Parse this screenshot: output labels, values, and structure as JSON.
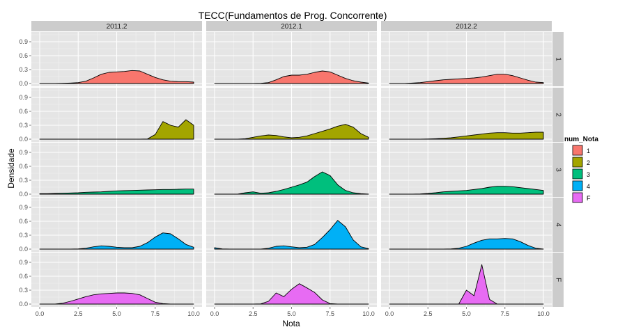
{
  "chart_data": {
    "type": "area",
    "subtype": "density-facet-grid",
    "title": "TECC(Fundamentos de Prog. Concorrente)",
    "xlabel": "Nota",
    "ylabel": "Densidade",
    "columns": [
      "2011.2",
      "2012.1",
      "2012.2"
    ],
    "rows": [
      "1",
      "2",
      "3",
      "4",
      "F"
    ],
    "xlim": [
      0,
      10
    ],
    "ylim": [
      0,
      1.05
    ],
    "x_ticks": [
      "0.0",
      "2.5",
      "5.0",
      "7.5",
      "10.0"
    ],
    "y_ticks": [
      "0.0",
      "0.3",
      "0.6",
      "0.9"
    ],
    "grid": true,
    "legend": {
      "title": "num_Nota",
      "position": "right",
      "entries": [
        "1",
        "2",
        "3",
        "4",
        "F"
      ]
    },
    "colors": {
      "1": "#F8766D",
      "2": "#A3A500",
      "3": "#00BF7D",
      "4": "#00B0F6",
      "F": "#E76BF3",
      "panel_bg": "#E5E5E5",
      "strip_bg": "#CCCCCC",
      "grid_major": "#FFFFFF",
      "grid_minor": "#F2F2F2"
    },
    "x": [
      0,
      0.5,
      1,
      1.5,
      2,
      2.5,
      3,
      3.5,
      4,
      4.5,
      5,
      5.5,
      6,
      6.5,
      7,
      7.5,
      8,
      8.5,
      9,
      9.5,
      10
    ],
    "panels": [
      {
        "row": "1",
        "col": "2011.2",
        "y": [
          0,
          0,
          0,
          0.005,
          0.01,
          0.02,
          0.05,
          0.12,
          0.2,
          0.24,
          0.25,
          0.26,
          0.28,
          0.27,
          0.2,
          0.13,
          0.08,
          0.05,
          0.04,
          0.04,
          0.03
        ]
      },
      {
        "row": "1",
        "col": "2012.1",
        "y": [
          0,
          0,
          0,
          0,
          0,
          0,
          0.005,
          0.02,
          0.08,
          0.15,
          0.18,
          0.18,
          0.2,
          0.24,
          0.27,
          0.25,
          0.18,
          0.11,
          0.06,
          0.03,
          0.01
        ]
      },
      {
        "row": "1",
        "col": "2012.2",
        "y": [
          0,
          0,
          0,
          0.01,
          0.02,
          0.04,
          0.06,
          0.08,
          0.09,
          0.1,
          0.11,
          0.12,
          0.14,
          0.17,
          0.2,
          0.2,
          0.17,
          0.12,
          0.07,
          0.03,
          0.02
        ]
      },
      {
        "row": "2",
        "col": "2011.2",
        "y": [
          0,
          0,
          0,
          0,
          0,
          0,
          0,
          0,
          0,
          0,
          0,
          0,
          0,
          0,
          0.005,
          0.1,
          0.38,
          0.3,
          0.26,
          0.42,
          0.3
        ]
      },
      {
        "row": "2",
        "col": "2012.1",
        "y": [
          0,
          0,
          0,
          0,
          0.01,
          0.04,
          0.07,
          0.09,
          0.08,
          0.05,
          0.03,
          0.04,
          0.07,
          0.12,
          0.17,
          0.22,
          0.28,
          0.32,
          0.26,
          0.12,
          0.04
        ]
      },
      {
        "row": "2",
        "col": "2012.2",
        "y": [
          0,
          0,
          0,
          0,
          0,
          0.005,
          0.01,
          0.02,
          0.03,
          0.05,
          0.07,
          0.09,
          0.11,
          0.13,
          0.14,
          0.14,
          0.13,
          0.13,
          0.14,
          0.15,
          0.15
        ]
      },
      {
        "row": "3",
        "col": "2011.2",
        "y": [
          0.01,
          0.01,
          0.015,
          0.02,
          0.025,
          0.03,
          0.04,
          0.045,
          0.05,
          0.06,
          0.07,
          0.075,
          0.08,
          0.085,
          0.09,
          0.095,
          0.1,
          0.1,
          0.105,
          0.11,
          0.11
        ]
      },
      {
        "row": "3",
        "col": "2012.1",
        "y": [
          0,
          0,
          0,
          0,
          0.03,
          0.05,
          0.02,
          0.03,
          0.06,
          0.1,
          0.15,
          0.2,
          0.26,
          0.38,
          0.48,
          0.4,
          0.2,
          0.08,
          0.03,
          0.01,
          0
        ]
      },
      {
        "row": "3",
        "col": "2012.2",
        "y": [
          0,
          0,
          0,
          0,
          0.005,
          0.015,
          0.03,
          0.05,
          0.06,
          0.07,
          0.08,
          0.1,
          0.12,
          0.15,
          0.17,
          0.17,
          0.16,
          0.14,
          0.12,
          0.1,
          0.08
        ]
      },
      {
        "row": "4",
        "col": "2011.2",
        "y": [
          0,
          0,
          0,
          0,
          0,
          0.005,
          0.02,
          0.05,
          0.07,
          0.06,
          0.04,
          0.03,
          0.03,
          0.06,
          0.14,
          0.26,
          0.35,
          0.33,
          0.22,
          0.1,
          0.04
        ]
      },
      {
        "row": "4",
        "col": "2012.1",
        "y": [
          0.03,
          0.005,
          0,
          0,
          0,
          0,
          0,
          0.02,
          0.06,
          0.07,
          0.05,
          0.03,
          0.04,
          0.1,
          0.25,
          0.42,
          0.62,
          0.48,
          0.2,
          0.05,
          0.01
        ]
      },
      {
        "row": "4",
        "col": "2012.2",
        "y": [
          0,
          0,
          0,
          0,
          0,
          0,
          0,
          0,
          0.005,
          0.02,
          0.06,
          0.13,
          0.19,
          0.22,
          0.22,
          0.23,
          0.22,
          0.16,
          0.08,
          0.02,
          0
        ]
      },
      {
        "row": "F",
        "col": "2011.2",
        "y": [
          0,
          0,
          0,
          0.02,
          0.06,
          0.11,
          0.16,
          0.2,
          0.22,
          0.23,
          0.24,
          0.24,
          0.23,
          0.2,
          0.12,
          0.04,
          0.01,
          0,
          0,
          0,
          0
        ]
      },
      {
        "row": "F",
        "col": "2012.1",
        "y": [
          0,
          0,
          0,
          0,
          0,
          0,
          0.005,
          0.06,
          0.24,
          0.16,
          0.32,
          0.44,
          0.35,
          0.25,
          0.09,
          0.01,
          0,
          0,
          0,
          0,
          0
        ]
      },
      {
        "row": "F",
        "col": "2012.2",
        "y": [
          0,
          0,
          0,
          0,
          0,
          0,
          0,
          0,
          0,
          0,
          0.3,
          0.18,
          0.85,
          0.1,
          0,
          0,
          0,
          0,
          0,
          0,
          0
        ]
      }
    ]
  }
}
